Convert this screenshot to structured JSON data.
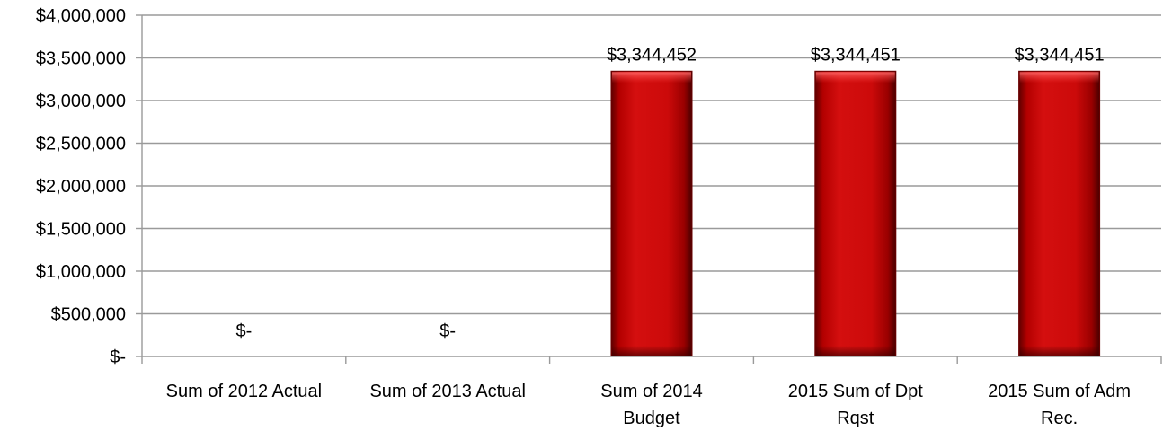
{
  "chart_data": {
    "type": "bar",
    "categories": [
      "Sum of 2012 Actual",
      "Sum of 2013 Actual",
      "Sum of 2014 Budget",
      "2015 Sum of Dpt Rqst",
      "2015 Sum of Adm Rec."
    ],
    "values": [
      0,
      0,
      3344452,
      3344451,
      3344451
    ],
    "data_labels": [
      "$-",
      "$-",
      "$3,344,452",
      "$3,344,451",
      "$3,344,451"
    ],
    "category_lines": [
      [
        "Sum of 2012 Actual"
      ],
      [
        "Sum of 2013 Actual"
      ],
      [
        "Sum of 2014",
        "Budget"
      ],
      [
        "2015 Sum of Dpt",
        "Rqst"
      ],
      [
        "2015 Sum of Adm",
        "Rec."
      ]
    ],
    "yticks": [
      0,
      500000,
      1000000,
      1500000,
      2000000,
      2500000,
      3000000,
      3500000,
      4000000
    ],
    "ytick_labels": [
      "$-",
      "$500,000",
      "$1,000,000",
      "$1,500,000",
      "$2,000,000",
      "$2,500,000",
      "$3,000,000",
      "$3,500,000",
      "$4,000,000"
    ],
    "ylim": [
      0,
      4000000
    ],
    "title": "",
    "xlabel": "",
    "ylabel": "",
    "grid": true,
    "legend": "none",
    "bar_color": "#cc0000"
  }
}
